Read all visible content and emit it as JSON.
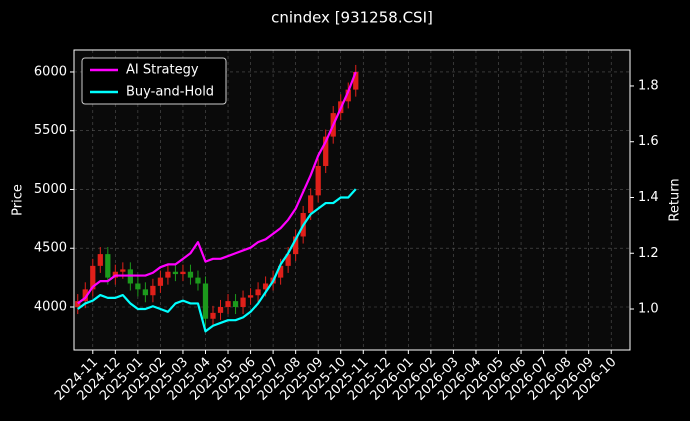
{
  "chart_data": {
    "type": "candlestick",
    "title": "cnindex [931258.CSI]",
    "ylabel": "Price",
    "y2label": "Return",
    "categories": [
      null,
      null,
      "2024-11",
      null,
      null,
      "2024-12",
      null,
      null,
      "2025-01",
      null,
      null,
      "2025-02",
      null,
      null,
      "2025-03",
      null,
      null,
      "2025-04",
      null,
      null,
      "2025-05",
      null,
      null,
      "2025-06",
      null,
      null,
      "2025-07",
      null,
      null,
      "2025-08",
      null,
      null,
      "2025-09",
      null,
      null,
      "2025-10",
      null,
      null,
      "2025-11",
      null,
      null,
      "2025-12",
      null,
      null,
      "2026-01",
      null,
      null,
      "2026-02",
      null,
      null,
      "2026-03",
      null,
      null,
      "2026-04",
      null,
      null,
      "2026-05",
      null,
      null,
      "2026-06",
      null,
      null,
      "2026-07",
      null,
      null,
      "2026-08",
      null,
      null,
      "2026-09",
      null,
      null,
      "2026-10",
      null,
      null
    ],
    "open": [
      4000,
      4050,
      4150,
      4350,
      4450,
      4250,
      4300,
      4320,
      4200,
      4150,
      4100,
      4180,
      4250,
      4300,
      4280,
      4300,
      4250,
      4200,
      3900,
      3950,
      4000,
      4050,
      4000,
      4080,
      4100,
      4150,
      4200,
      4250,
      4350,
      4450,
      4600,
      4800,
      4950,
      5200,
      5450,
      5650,
      5750,
      5850,
      null,
      null,
      null,
      null,
      null,
      null,
      null,
      null,
      null,
      null,
      null,
      null,
      null,
      null,
      null,
      null,
      null,
      null,
      null,
      null,
      null,
      null,
      null,
      null,
      null,
      null,
      null,
      null,
      null,
      null,
      null,
      null,
      null,
      null,
      null,
      null
    ],
    "high": [
      4110,
      4210,
      4410,
      4510,
      4510,
      4360,
      4380,
      4380,
      4260,
      4210,
      4240,
      4310,
      4360,
      4360,
      4360,
      4360,
      4310,
      4260,
      4010,
      4060,
      4110,
      4110,
      4140,
      4160,
      4210,
      4260,
      4310,
      4410,
      4510,
      4660,
      4860,
      5010,
      5260,
      5510,
      5710,
      5810,
      5910,
      6060,
      null,
      null,
      null,
      null,
      null,
      null,
      null,
      null,
      null,
      null,
      null,
      null,
      null,
      null,
      null,
      null,
      null,
      null,
      null,
      null,
      null,
      null,
      null,
      null,
      null,
      null,
      null,
      null,
      null,
      null,
      null,
      null,
      null,
      null,
      null,
      null
    ],
    "low": [
      3940,
      3990,
      4090,
      4290,
      4190,
      4190,
      4240,
      4140,
      4090,
      4040,
      4040,
      4120,
      4190,
      4220,
      4220,
      4190,
      4140,
      3840,
      3840,
      3890,
      3940,
      3940,
      3940,
      4020,
      4040,
      4090,
      4140,
      4190,
      4290,
      4390,
      4540,
      4740,
      4890,
      5140,
      5390,
      5590,
      5690,
      5790,
      null,
      null,
      null,
      null,
      null,
      null,
      null,
      null,
      null,
      null,
      null,
      null,
      null,
      null,
      null,
      null,
      null,
      null,
      null,
      null,
      null,
      null,
      null,
      null,
      null,
      null,
      null,
      null,
      null,
      null,
      null,
      null,
      null,
      null,
      null,
      null
    ],
    "close": [
      4050,
      4150,
      4350,
      4450,
      4250,
      4300,
      4320,
      4200,
      4150,
      4100,
      4180,
      4250,
      4300,
      4280,
      4300,
      4250,
      4200,
      3900,
      3950,
      4000,
      4050,
      4000,
      4080,
      4100,
      4150,
      4200,
      4250,
      4350,
      4450,
      4600,
      4800,
      4950,
      5200,
      5450,
      5650,
      5750,
      5850,
      6000,
      null,
      null,
      null,
      null,
      null,
      null,
      null,
      null,
      null,
      null,
      null,
      null,
      null,
      null,
      null,
      null,
      null,
      null,
      null,
      null,
      null,
      null,
      null,
      null,
      null,
      null,
      null,
      null,
      null,
      null,
      null,
      null,
      null,
      null,
      null,
      null
    ],
    "up_color": "#e0201a",
    "down_color": "#1c9a1c",
    "series": [
      {
        "name": "AI Strategy",
        "color": "#ff00ff",
        "axis": "y2",
        "values": [
          1.02,
          1.04,
          1.08,
          1.1,
          1.1,
          1.12,
          1.12,
          1.12,
          1.12,
          1.12,
          1.13,
          1.15,
          1.16,
          1.16,
          1.18,
          1.2,
          1.24,
          1.17,
          1.18,
          1.18,
          1.19,
          1.2,
          1.21,
          1.22,
          1.24,
          1.25,
          1.27,
          1.29,
          1.32,
          1.36,
          1.42,
          1.48,
          1.55,
          1.6,
          1.66,
          1.72,
          1.78,
          1.85,
          null,
          null,
          null,
          null,
          null,
          null,
          null,
          null,
          null,
          null,
          null,
          null,
          null,
          null,
          null,
          null,
          null,
          null,
          null,
          null,
          null,
          null,
          null,
          null,
          null,
          null,
          null,
          null,
          null,
          null,
          null,
          null,
          null,
          null,
          null,
          null
        ]
      },
      {
        "name": "Buy-and-Hold",
        "color": "#00ffff",
        "axis": "y2",
        "values": [
          1.0,
          1.02,
          1.03,
          1.05,
          1.04,
          1.04,
          1.05,
          1.02,
          1.0,
          1.0,
          1.01,
          1.0,
          0.99,
          1.02,
          1.03,
          1.02,
          1.02,
          0.92,
          0.94,
          0.95,
          0.96,
          0.96,
          0.97,
          0.99,
          1.02,
          1.06,
          1.1,
          1.16,
          1.2,
          1.25,
          1.3,
          1.34,
          1.36,
          1.38,
          1.38,
          1.4,
          1.4,
          1.43,
          null,
          null,
          null,
          null,
          null,
          null,
          null,
          null,
          null,
          null,
          null,
          null,
          null,
          null,
          null,
          null,
          null,
          null,
          null,
          null,
          null,
          null,
          null,
          null,
          null,
          null,
          null,
          null,
          null,
          null,
          null,
          null,
          null,
          null,
          null,
          null
        ]
      }
    ],
    "ylim": [
      3634,
      6187
    ],
    "yticks": [
      4000,
      4500,
      5000,
      5500,
      6000
    ],
    "y2lim": [
      0.853,
      1.929
    ],
    "y2ticks": [
      {
        "value": 1,
        "label": "1.0"
      },
      1.2,
      1.4,
      1.6,
      1.8
    ],
    "grid": true,
    "legend": "upper left"
  }
}
